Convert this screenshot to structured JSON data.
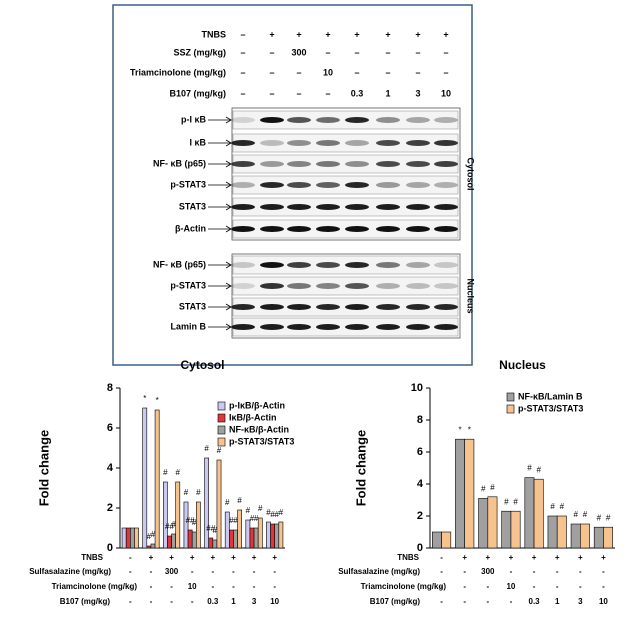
{
  "blot": {
    "rows": [
      {
        "label": "TNBS",
        "cells": [
          "–",
          "+",
          "+",
          "+",
          "+",
          "+",
          "+",
          "+"
        ]
      },
      {
        "label": "SSZ (mg/kg)",
        "cells": [
          "–",
          "–",
          "300",
          "–",
          "–",
          "–",
          "–",
          "–"
        ]
      },
      {
        "label": "Triamcinolone (mg/kg)",
        "cells": [
          "–",
          "–",
          "–",
          "10",
          "–",
          "–",
          "–",
          "–"
        ]
      },
      {
        "label": "B107 (mg/kg)",
        "cells": [
          "–",
          "–",
          "–",
          "–",
          "0.3",
          "1",
          "3",
          "10"
        ]
      }
    ],
    "cytosol": {
      "label": "Cytosol",
      "proteins": [
        "p-I κB",
        "I κB",
        "NF- κB (p65)",
        "p-STAT3",
        "STAT3",
        "β-Actin"
      ]
    },
    "nucleus": {
      "label": "Nucleus",
      "proteins": [
        "NF- κB (p65)",
        "p-STAT3",
        "STAT3",
        "Lamin B"
      ]
    }
  },
  "chart_data": [
    {
      "type": "bar",
      "title": "Cytosol",
      "y_label": "Fold change",
      "ylim": [
        0,
        8
      ],
      "yticks": [
        0,
        2,
        4,
        6,
        8
      ],
      "series": [
        {
          "name": "p-IκB/β-Actin",
          "color": "#c9c9f2",
          "values": [
            1,
            7.0,
            3.3,
            2.3,
            4.5,
            1.8,
            1.4,
            1.3
          ],
          "significance": [
            null,
            "*",
            "#",
            "#",
            "#",
            "#",
            "#",
            "#"
          ]
        },
        {
          "name": "IκB/β-Actin",
          "color": "#e0383a",
          "values": [
            1,
            0.1,
            0.6,
            0.9,
            0.5,
            0.9,
            1.0,
            1.2
          ],
          "significance": [
            null,
            "#",
            "##",
            "##",
            "##",
            "#",
            "#",
            "#"
          ]
        },
        {
          "name": "NF-κB/β-Actin",
          "color": "#a0a0a0",
          "values": [
            1,
            0.2,
            0.7,
            0.8,
            0.4,
            0.9,
            1.0,
            1.2
          ],
          "significance": [
            null,
            "#",
            "#",
            "#",
            "#",
            "#",
            "#",
            "#"
          ]
        },
        {
          "name": "p-STAT3/STAT3",
          "color": "#f6c28e",
          "values": [
            1,
            6.9,
            3.3,
            2.3,
            4.4,
            1.9,
            1.5,
            1.3
          ],
          "significance": [
            null,
            "*",
            "#",
            "#",
            "#",
            "#",
            "#",
            "#"
          ]
        }
      ],
      "treatment_rows": [
        {
          "label": "TNBS",
          "cells": [
            "-",
            "+",
            "+",
            "+",
            "+",
            "+",
            "+",
            "+"
          ]
        },
        {
          "label": "Sulfasalazine (mg/kg)",
          "cells": [
            "-",
            "-",
            "300",
            "-",
            "-",
            "-",
            "-",
            "-"
          ]
        },
        {
          "label": "Triamcinolone (mg/kg)",
          "cells": [
            "-",
            "-",
            "-",
            "10",
            "-",
            "-",
            "-",
            "-"
          ]
        },
        {
          "label": "B107 (mg/kg)",
          "cells": [
            "-",
            "-",
            "-",
            "-",
            "0.3",
            "1",
            "3",
            "10"
          ]
        }
      ]
    },
    {
      "type": "bar",
      "title": "Nucleus",
      "y_label": "Fold change",
      "ylim": [
        0,
        10
      ],
      "yticks": [
        0,
        2,
        4,
        6,
        8,
        10
      ],
      "series": [
        {
          "name": "NF-κB/Lamin B",
          "color": "#a0a0a0",
          "values": [
            1,
            6.8,
            3.1,
            2.3,
            4.4,
            2.0,
            1.5,
            1.3
          ],
          "significance": [
            null,
            "*",
            "#",
            "#",
            "#",
            "#",
            "#",
            "#"
          ]
        },
        {
          "name": "p-STAT3/STAT3",
          "color": "#f6c28e",
          "values": [
            1,
            6.8,
            3.2,
            2.3,
            4.3,
            2.0,
            1.5,
            1.3
          ],
          "significance": [
            null,
            "*",
            "#",
            "#",
            "#",
            "#",
            "#",
            "#"
          ]
        }
      ],
      "treatment_rows": [
        {
          "label": "TNBS",
          "cells": [
            "-",
            "+",
            "+",
            "+",
            "+",
            "+",
            "+",
            "+"
          ]
        },
        {
          "label": "Sulfasalazine (mg/kg)",
          "cells": [
            "-",
            "-",
            "300",
            "-",
            "-",
            "-",
            "-",
            "-"
          ]
        },
        {
          "label": "Triamcinolone (mg/kg)",
          "cells": [
            "-",
            "-",
            "-",
            "10",
            "-",
            "-",
            "-",
            "-"
          ]
        },
        {
          "label": "B107 (mg/kg)",
          "cells": [
            "-",
            "-",
            "-",
            "-",
            "0.3",
            "1",
            "3",
            "10"
          ]
        }
      ]
    }
  ]
}
